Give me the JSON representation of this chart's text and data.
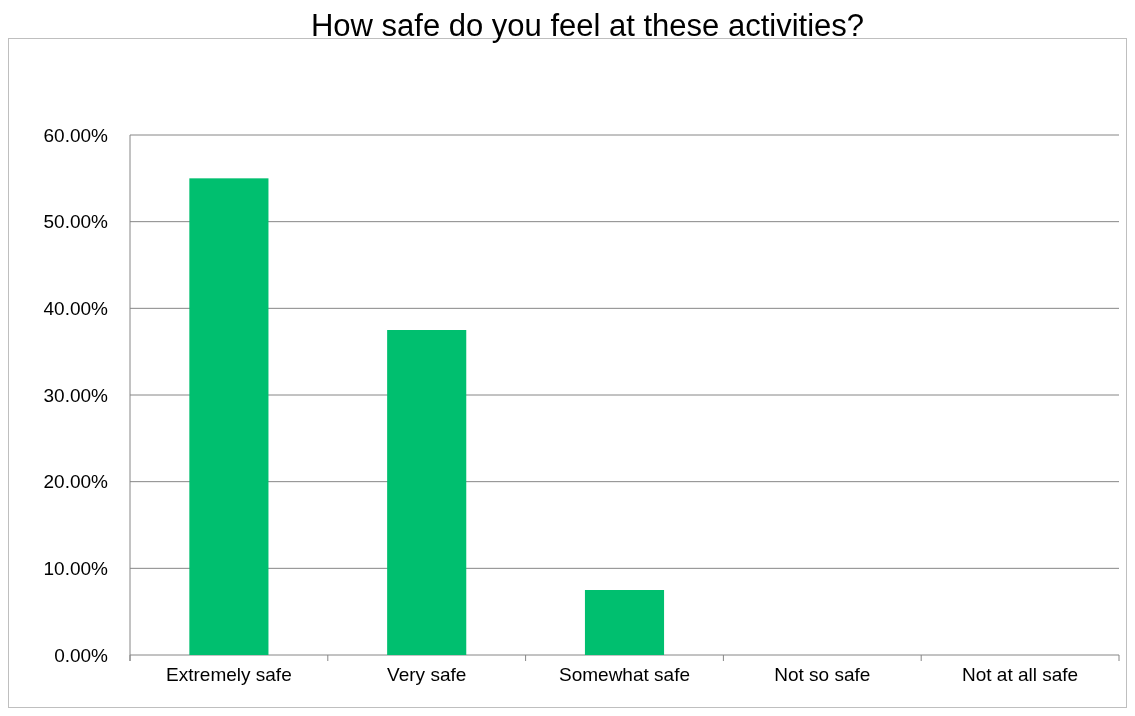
{
  "chart_data": {
    "type": "bar",
    "title": "How safe do you feel at these activities?",
    "categories": [
      "Extremely safe",
      "Very safe",
      "Somewhat safe",
      "Not so safe",
      "Not at all safe"
    ],
    "values": [
      0.55,
      0.375,
      0.075,
      0,
      0
    ],
    "color": "#00bf6f",
    "ylim": [
      0,
      0.6
    ],
    "yticks": [
      {
        "value": 0,
        "label": "0.00%"
      },
      {
        "value": 0.1,
        "label": "10.00%"
      },
      {
        "value": 0.2,
        "label": "20.00%"
      },
      {
        "value": 0.3,
        "label": "30.00%"
      },
      {
        "value": 0.4,
        "label": "40.00%"
      },
      {
        "value": 0.5,
        "label": "50.00%"
      },
      {
        "value": 0.6,
        "label": "60.00%"
      }
    ],
    "grid": "y"
  }
}
